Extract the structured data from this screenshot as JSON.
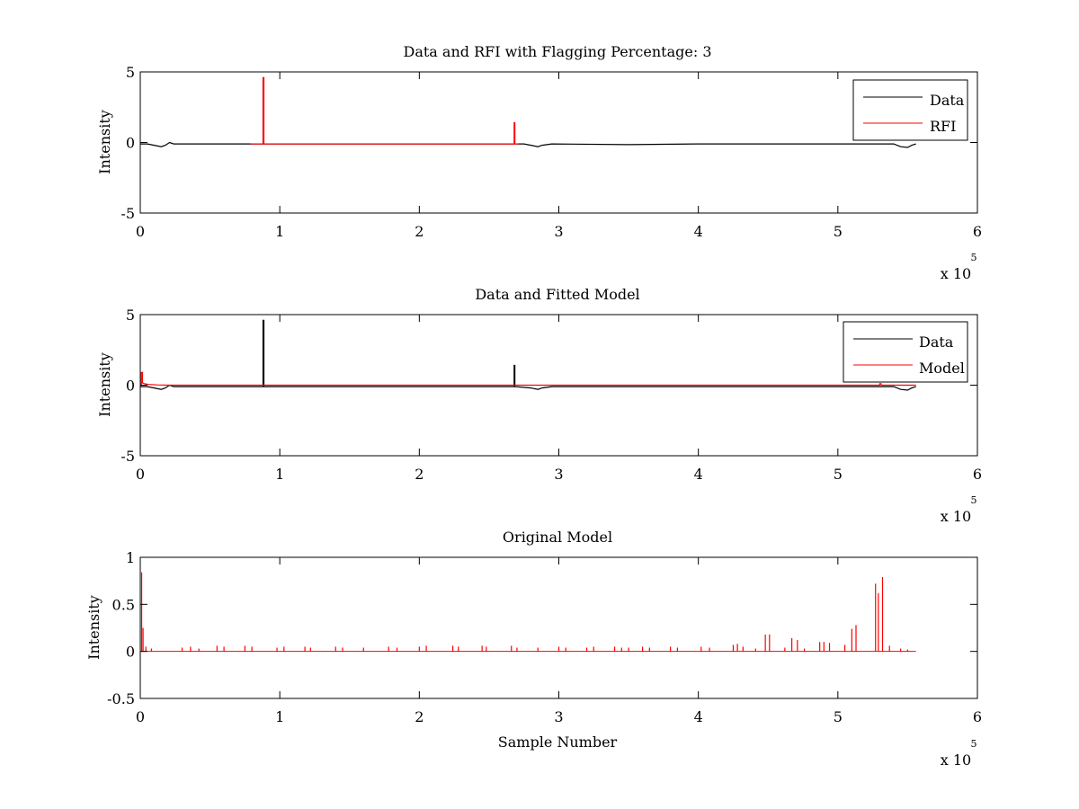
{
  "figure": {
    "background": "#ffffff"
  },
  "chart_data": [
    {
      "type": "line",
      "title": "Data and RFI with Flagging Percentage: 3",
      "xlabel": "",
      "ylabel": "Intensity",
      "xlim": [
        0,
        600000
      ],
      "ylim": [
        -5,
        5
      ],
      "xticks": [
        0,
        100000,
        200000,
        300000,
        400000,
        500000,
        600000
      ],
      "xtick_labels": [
        "0",
        "1",
        "2",
        "3",
        "4",
        "5",
        "6"
      ],
      "yticks": [
        -5,
        0,
        5
      ],
      "ytick_labels": [
        "-5",
        "0",
        "5"
      ],
      "x_multiplier": {
        "base": "x 10",
        "exponent": "5"
      },
      "legend": {
        "placement": "top-right",
        "entries": [
          "Data",
          "RFI"
        ]
      },
      "grid": false,
      "series": [
        {
          "name": "Data",
          "color": "#000000",
          "x": [
            0,
            5000,
            10000,
            15000,
            18000,
            21000,
            24000,
            30000,
            80000,
            90000,
            150000,
            200000,
            260000,
            275000,
            280000,
            285000,
            288000,
            295000,
            350000,
            400000,
            450000,
            500000,
            540000,
            545000,
            550000,
            553000,
            556000
          ],
          "y": [
            -0.1,
            -0.1,
            -0.2,
            -0.3,
            -0.2,
            0.0,
            -0.1,
            -0.1,
            -0.1,
            -0.1,
            -0.1,
            -0.1,
            -0.1,
            -0.1,
            -0.2,
            -0.3,
            -0.2,
            -0.1,
            -0.15,
            -0.1,
            -0.1,
            -0.1,
            -0.1,
            -0.3,
            -0.35,
            -0.2,
            -0.1
          ]
        },
        {
          "name": "RFI",
          "color": "#ff0000",
          "x": [
            79000,
            88000,
            88000,
            88600,
            88600,
            89000,
            265000,
            268000,
            268000,
            268500,
            268500,
            271000
          ],
          "y": [
            -0.1,
            -0.1,
            4.6,
            4.6,
            -0.1,
            -0.1,
            -0.1,
            -0.1,
            1.4,
            1.4,
            -0.1,
            -0.1
          ]
        }
      ]
    },
    {
      "type": "line",
      "title": "Data and Fitted Model",
      "xlabel": "",
      "ylabel": "Intensity",
      "xlim": [
        0,
        600000
      ],
      "ylim": [
        -5,
        5
      ],
      "xticks": [
        0,
        100000,
        200000,
        300000,
        400000,
        500000,
        600000
      ],
      "xtick_labels": [
        "0",
        "1",
        "2",
        "3",
        "4",
        "5",
        "6"
      ],
      "yticks": [
        -5,
        0,
        5
      ],
      "ytick_labels": [
        "-5",
        "0",
        "5"
      ],
      "x_multiplier": {
        "base": "x 10",
        "exponent": "5"
      },
      "legend": {
        "placement": "top-right",
        "entries": [
          "Data",
          "Model"
        ]
      },
      "grid": false,
      "series": [
        {
          "name": "Data",
          "color": "#000000",
          "x": [
            0,
            5000,
            10000,
            15000,
            18000,
            21000,
            24000,
            30000,
            88000,
            88000,
            88600,
            88600,
            150000,
            200000,
            268000,
            268000,
            268500,
            268500,
            280000,
            285000,
            288000,
            295000,
            400000,
            500000,
            540000,
            545000,
            550000,
            553000,
            556000
          ],
          "y": [
            -0.1,
            -0.1,
            -0.2,
            -0.3,
            -0.2,
            0.0,
            -0.1,
            -0.1,
            -0.1,
            4.6,
            4.6,
            -0.1,
            -0.1,
            -0.1,
            -0.1,
            1.4,
            1.4,
            -0.1,
            -0.2,
            -0.3,
            -0.2,
            -0.1,
            -0.1,
            -0.1,
            -0.1,
            -0.3,
            -0.35,
            -0.2,
            -0.1
          ]
        },
        {
          "name": "Model",
          "color": "#ff0000",
          "x": [
            0,
            800,
            800,
            1600,
            1600,
            3000,
            6000,
            12000,
            20000,
            100000,
            200000,
            300000,
            400000,
            500000,
            530000,
            530000,
            531000,
            531000,
            556000
          ],
          "y": [
            0.0,
            0.0,
            0.9,
            0.9,
            0.15,
            0.1,
            0.05,
            0.02,
            0.0,
            0.0,
            0.0,
            0.0,
            0.0,
            0.0,
            0.0,
            0.1,
            0.1,
            0.0,
            0.0
          ]
        }
      ]
    },
    {
      "type": "line",
      "title": "Original Model",
      "xlabel": "Sample Number",
      "ylabel": "Intensity",
      "xlim": [
        0,
        600000
      ],
      "ylim": [
        -0.5,
        1
      ],
      "xticks": [
        0,
        100000,
        200000,
        300000,
        400000,
        500000,
        600000
      ],
      "xtick_labels": [
        "0",
        "1",
        "2",
        "3",
        "4",
        "5",
        "6"
      ],
      "yticks": [
        -0.5,
        0,
        0.5,
        1
      ],
      "ytick_labels": [
        "-0.5",
        "0",
        "0.5",
        "1"
      ],
      "x_multiplier": {
        "base": "x 10",
        "exponent": "5"
      },
      "grid": false,
      "series": [
        {
          "color": "#ff0000",
          "spikes": [
            [
              1000,
              0.84
            ],
            [
              2000,
              0.25
            ],
            [
              4000,
              0.05
            ],
            [
              8000,
              0.03
            ],
            [
              30000,
              0.04
            ],
            [
              36000,
              0.05
            ],
            [
              42000,
              0.03
            ],
            [
              55000,
              0.06
            ],
            [
              60000,
              0.05
            ],
            [
              75000,
              0.06
            ],
            [
              80000,
              0.05
            ],
            [
              98000,
              0.04
            ],
            [
              103000,
              0.05
            ],
            [
              118000,
              0.05
            ],
            [
              122000,
              0.04
            ],
            [
              140000,
              0.05
            ],
            [
              145000,
              0.04
            ],
            [
              160000,
              0.04
            ],
            [
              178000,
              0.05
            ],
            [
              184000,
              0.04
            ],
            [
              200000,
              0.05
            ],
            [
              205000,
              0.06
            ],
            [
              224000,
              0.06
            ],
            [
              228000,
              0.05
            ],
            [
              245000,
              0.06
            ],
            [
              248000,
              0.05
            ],
            [
              266000,
              0.06
            ],
            [
              270000,
              0.04
            ],
            [
              285000,
              0.04
            ],
            [
              300000,
              0.05
            ],
            [
              305000,
              0.04
            ],
            [
              320000,
              0.04
            ],
            [
              325000,
              0.05
            ],
            [
              340000,
              0.05
            ],
            [
              345000,
              0.04
            ],
            [
              350000,
              0.04
            ],
            [
              360000,
              0.05
            ],
            [
              365000,
              0.04
            ],
            [
              380000,
              0.05
            ],
            [
              385000,
              0.04
            ],
            [
              402000,
              0.05
            ],
            [
              408000,
              0.04
            ],
            [
              425000,
              0.07
            ],
            [
              428000,
              0.08
            ],
            [
              432000,
              0.05
            ],
            [
              441000,
              0.03
            ],
            [
              448000,
              0.18
            ],
            [
              451000,
              0.18
            ],
            [
              462000,
              0.04
            ],
            [
              467000,
              0.14
            ],
            [
              471000,
              0.12
            ],
            [
              476000,
              0.03
            ],
            [
              487000,
              0.1
            ],
            [
              490000,
              0.1
            ],
            [
              494000,
              0.09
            ],
            [
              505000,
              0.07
            ],
            [
              510000,
              0.24
            ],
            [
              513000,
              0.28
            ],
            [
              527000,
              0.72
            ],
            [
              529000,
              0.62
            ],
            [
              532000,
              0.79
            ],
            [
              537000,
              0.06
            ],
            [
              545000,
              0.03
            ],
            [
              550000,
              0.02
            ]
          ],
          "baseline_end": 556000
        }
      ]
    }
  ]
}
